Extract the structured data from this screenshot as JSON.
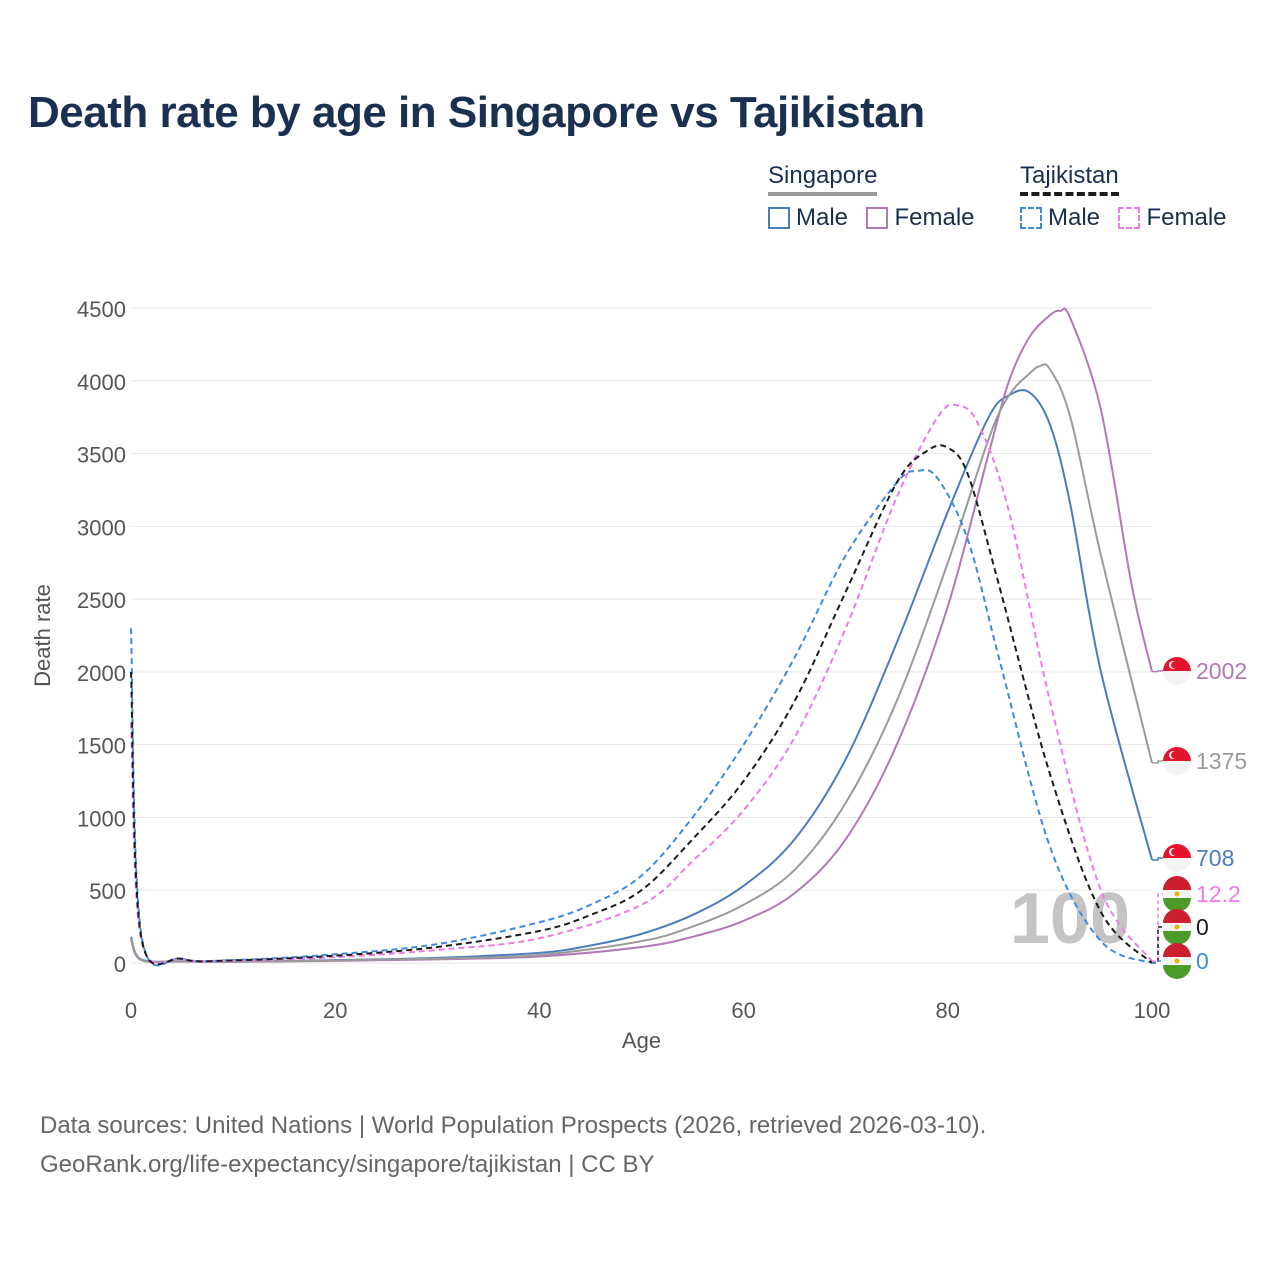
{
  "chart_data": {
    "type": "line",
    "title": "Death rate by age in Singapore vs Tajikistan",
    "xlabel": "Age",
    "ylabel": "Death rate",
    "xlim": [
      0,
      100
    ],
    "ylim": [
      0,
      4500
    ],
    "xticks": [
      "0",
      "20",
      "40",
      "60",
      "80",
      "100"
    ],
    "yticks": [
      "0",
      "500",
      "1000",
      "1500",
      "2000",
      "2500",
      "3000",
      "3500",
      "4000",
      "4500"
    ],
    "grid": true,
    "highlight_age": "100",
    "legend": {
      "groups": [
        {
          "country": "Singapore",
          "items": [
            "Male",
            "Female"
          ]
        },
        {
          "country": "Tajikistan",
          "items": [
            "Male",
            "Female"
          ]
        }
      ]
    },
    "series": [
      {
        "name": "Singapore Male",
        "country": "Singapore",
        "sex": "Male",
        "color": "#4a7cc0",
        "dash": false,
        "x": [
          0,
          1,
          5,
          10,
          20,
          30,
          40,
          45,
          50,
          55,
          60,
          65,
          70,
          75,
          80,
          84,
          86,
          88,
          90,
          92,
          95,
          100
        ],
        "y": [
          180,
          25,
          12,
          10,
          20,
          35,
          70,
          120,
          200,
          330,
          530,
          850,
          1400,
          2200,
          3100,
          3750,
          3900,
          3920,
          3700,
          3150,
          2000,
          708
        ],
        "end_label": "708"
      },
      {
        "name": "Singapore Female",
        "country": "Singapore",
        "sex": "Female",
        "color": "#b478b4",
        "dash": false,
        "x": [
          0,
          1,
          5,
          10,
          20,
          30,
          40,
          50,
          55,
          60,
          65,
          70,
          75,
          80,
          84,
          86,
          88,
          90,
          91,
          92,
          95,
          98,
          100
        ],
        "y": [
          160,
          20,
          10,
          8,
          15,
          25,
          45,
          110,
          180,
          290,
          480,
          850,
          1500,
          2450,
          3500,
          4000,
          4300,
          4450,
          4480,
          4430,
          3800,
          2600,
          2002
        ],
        "end_label": "2002"
      },
      {
        "name": "Singapore Total",
        "country": "Singapore",
        "sex": "Total",
        "color": "#9a9a9a",
        "dash": false,
        "x": [
          0,
          1,
          5,
          10,
          20,
          30,
          40,
          50,
          55,
          60,
          65,
          70,
          75,
          80,
          84,
          86,
          88,
          89,
          90,
          92,
          95,
          100
        ],
        "y": [
          170,
          22,
          11,
          9,
          17,
          30,
          55,
          150,
          250,
          400,
          640,
          1100,
          1800,
          2750,
          3600,
          3900,
          4050,
          4100,
          4080,
          3750,
          2800,
          1375
        ],
        "end_label": "1375"
      },
      {
        "name": "Tajikistan Male",
        "country": "Tajikistan",
        "sex": "Male",
        "color": "#3b8ce0",
        "dash": true,
        "x": [
          0,
          1,
          5,
          10,
          20,
          30,
          40,
          45,
          50,
          55,
          60,
          65,
          70,
          75,
          77,
          79,
          82,
          85,
          90,
          95,
          100
        ],
        "y": [
          2300,
          200,
          30,
          20,
          60,
          130,
          280,
          400,
          600,
          1000,
          1500,
          2100,
          2800,
          3300,
          3380,
          3330,
          2900,
          2100,
          800,
          150,
          0
        ],
        "end_label": "0"
      },
      {
        "name": "Tajikistan Female",
        "country": "Tajikistan",
        "sex": "Female",
        "color": "#f07ae6",
        "dash": true,
        "x": [
          0,
          1,
          5,
          10,
          20,
          30,
          40,
          50,
          55,
          60,
          65,
          70,
          75,
          79,
          81,
          83,
          86,
          90,
          95,
          100
        ],
        "y": [
          1650,
          160,
          25,
          15,
          40,
          90,
          170,
          400,
          700,
          1050,
          1550,
          2300,
          3200,
          3750,
          3830,
          3700,
          3100,
          1800,
          500,
          12.2
        ],
        "end_label": "12.2"
      },
      {
        "name": "Tajikistan Total",
        "country": "Tajikistan",
        "sex": "Total",
        "color": "#1c1c1c",
        "dash": true,
        "x": [
          0,
          1,
          5,
          10,
          20,
          30,
          40,
          45,
          50,
          55,
          60,
          65,
          70,
          75,
          78,
          80,
          82,
          85,
          90,
          95,
          100
        ],
        "y": [
          2000,
          180,
          28,
          18,
          50,
          110,
          220,
          330,
          500,
          850,
          1250,
          1800,
          2550,
          3300,
          3520,
          3540,
          3350,
          2600,
          1300,
          350,
          0
        ],
        "end_label": "0"
      }
    ]
  },
  "footer": {
    "line1": "Data sources: United Nations | World Population Prospects (2026, retrieved 2026-03-10).",
    "line2": "GeoRank.org/life-expectancy/singapore/tajikistan | CC BY"
  }
}
